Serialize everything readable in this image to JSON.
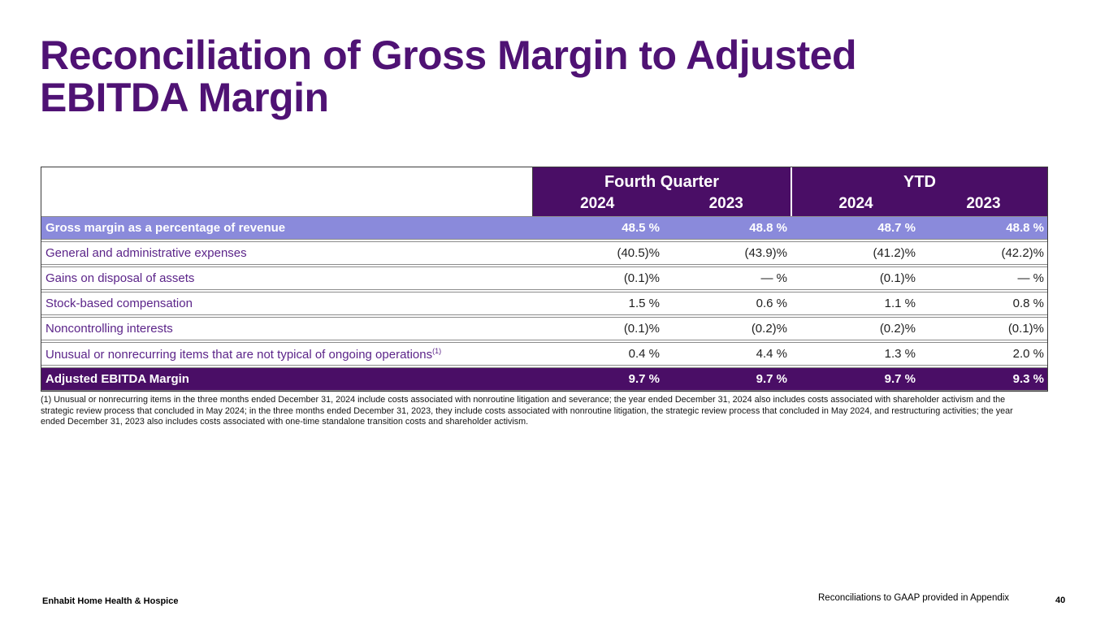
{
  "slide": {
    "title_line1": "Reconciliation of Gross Margin to Adjusted",
    "title_line2": "EBITDA Margin"
  },
  "table": {
    "col_groups": [
      {
        "label": "Fourth Quarter",
        "years": [
          "2024",
          "2023"
        ]
      },
      {
        "label": "YTD",
        "years": [
          "2024",
          "2023"
        ]
      }
    ],
    "rows": [
      {
        "label": "Gross margin as a percentage of revenue",
        "values": [
          "48.5 %",
          "48.8 %",
          "48.7 %",
          "48.8 %"
        ],
        "style": "highlight-light"
      },
      {
        "label": "General and administrative expenses",
        "values": [
          "(40.5)%",
          "(43.9)%",
          "(41.2)%",
          "(42.2)%"
        ],
        "style": ""
      },
      {
        "label": "Gains on disposal of assets",
        "values": [
          "(0.1)%",
          "— %",
          "(0.1)%",
          "— %"
        ],
        "style": ""
      },
      {
        "label": "Stock-based compensation",
        "values": [
          "1.5 %",
          "0.6 %",
          "1.1 %",
          "0.8 %"
        ],
        "style": ""
      },
      {
        "label": "Noncontrolling interests",
        "values": [
          "(0.1)%",
          "(0.2)%",
          "(0.2)%",
          "(0.1)%"
        ],
        "style": ""
      },
      {
        "label": "Unusual or nonrecurring items that are not typical of ongoing operations",
        "label_superscript": "(1)",
        "values": [
          "0.4 %",
          "4.4 %",
          "1.3 %",
          "2.0 %"
        ],
        "style": ""
      },
      {
        "label": "Adjusted EBITDA Margin",
        "values": [
          "9.7 %",
          "9.7 %",
          "9.7 %",
          "9.3 %"
        ],
        "style": "highlight-dark"
      }
    ]
  },
  "footnote": "(1) Unusual or nonrecurring items in the three months ended December 31, 2024 include costs associated with nonroutine litigation and severance; the year ended December 31, 2024 also includes costs associated with shareholder activism and the strategic review process that concluded in May 2024; in the three months ended December 31, 2023, they include costs associated with nonroutine litigation, the strategic review process that concluded in May 2024, and restructuring activities; the year ended December 31, 2023 also includes costs associated with one-time standalone transition costs and shareholder activism.",
  "footer": {
    "company": "Enhabit Home Health & Hospice",
    "note": "Reconciliations to GAAP provided in Appendix",
    "page_number": "40"
  },
  "colors": {
    "title_purple": "#4F1274",
    "dark_purple": "#4A0E66",
    "light_purple": "#8A8ADB",
    "label_purple": "#5B2489",
    "value_ink": "#1F1F1F",
    "row_border": "#8C8C8C",
    "outer_border": "#3C3C3C"
  }
}
